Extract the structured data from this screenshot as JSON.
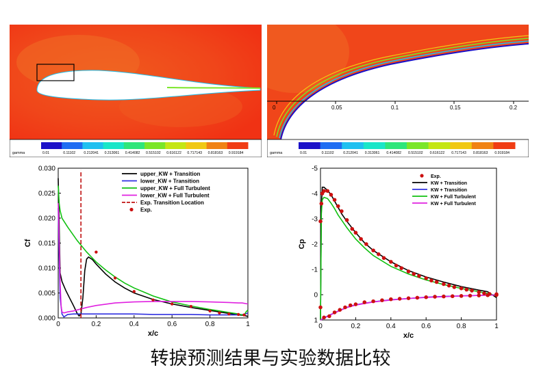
{
  "caption": "转捩预测结果与实验数据比较",
  "colormap": {
    "label": "gamma",
    "levels": [
      "0.01",
      "0.11102",
      "0.212041",
      "0.313061",
      "0.414082",
      "0.515102",
      "0.616122",
      "0.717143",
      "0.818163",
      "0.919184"
    ],
    "colors": [
      "#1a10c8",
      "#1e6cf2",
      "#1ec0f0",
      "#19e6c8",
      "#2ee67a",
      "#7ae628",
      "#c4e614",
      "#f0c814",
      "#f08214",
      "#f03c14"
    ]
  },
  "contour_zoom": {
    "ticks": [
      "0",
      "0.05",
      "0.1",
      "0.15",
      "0.2"
    ]
  },
  "chart_data": [
    {
      "type": "line",
      "xlabel": "x/c",
      "ylabel": "Cf",
      "xlim": [
        0,
        1
      ],
      "ylim": [
        0,
        0.03
      ],
      "xticks": [
        "0",
        "0.2",
        "0.4",
        "0.6",
        "0.8",
        "1"
      ],
      "yticks": [
        "0.000",
        "0.005",
        "0.010",
        "0.015",
        "0.020",
        "0.025",
        "0.030"
      ],
      "legend_position": "top-right",
      "series": [
        {
          "name": "upper_KW + Transition",
          "color": "#000000",
          "x": [
            0,
            0.01,
            0.02,
            0.04,
            0.06,
            0.08,
            0.1,
            0.11,
            0.12,
            0.13,
            0.14,
            0.15,
            0.16,
            0.18,
            0.2,
            0.25,
            0.3,
            0.35,
            0.4,
            0.5,
            0.6,
            0.7,
            0.8,
            0.9,
            0.95,
            0.98,
            1.0
          ],
          "y": [
            0.028,
            0.009,
            0.0073,
            0.0055,
            0.004,
            0.0025,
            0.0009,
            0.0004,
            0.0008,
            0.004,
            0.0095,
            0.0118,
            0.0122,
            0.0117,
            0.0108,
            0.0088,
            0.0072,
            0.006,
            0.005,
            0.0037,
            0.0028,
            0.0021,
            0.0015,
            0.0009,
            0.0006,
            0.0005,
            0.0003
          ]
        },
        {
          "name": "lower_KW + Transition",
          "color": "#3030e0",
          "x": [
            0,
            0.005,
            0.01,
            0.02,
            0.03,
            0.05,
            0.08,
            0.1,
            0.12,
            0.15,
            0.2,
            0.3,
            0.4,
            0.5,
            0.6,
            0.7,
            0.8,
            0.9,
            0.95,
            0.98,
            1.0
          ],
          "y": [
            0.022,
            0.012,
            0.004,
            0.0008,
            0.0002,
            0.0007,
            0.0008,
            0.0008,
            0.0008,
            0.0008,
            0.0008,
            0.0008,
            0.0008,
            0.0007,
            0.0007,
            0.0007,
            0.0006,
            0.0006,
            0.0006,
            0.0007,
            0.001
          ]
        },
        {
          "name": "upper_KW + Full Turbulent",
          "color": "#10c010",
          "x": [
            0,
            0.005,
            0.01,
            0.02,
            0.05,
            0.1,
            0.15,
            0.2,
            0.25,
            0.3,
            0.35,
            0.4,
            0.45,
            0.5,
            0.55,
            0.6,
            0.7,
            0.8,
            0.9,
            0.95,
            0.98,
            0.99,
            1.0
          ],
          "y": [
            0.0265,
            0.023,
            0.0215,
            0.02,
            0.0182,
            0.0155,
            0.0132,
            0.0112,
            0.0096,
            0.0082,
            0.007,
            0.006,
            0.0052,
            0.0044,
            0.0038,
            0.0032,
            0.0024,
            0.0017,
            0.0011,
            0.0008,
            0.0005,
            0.0012,
            0.0016
          ]
        },
        {
          "name": "lower_KW + Full Turbulent",
          "color": "#e020e0",
          "x": [
            0,
            0.005,
            0.01,
            0.015,
            0.02,
            0.03,
            0.05,
            0.08,
            0.1,
            0.15,
            0.2,
            0.3,
            0.4,
            0.5,
            0.6,
            0.7,
            0.8,
            0.9,
            0.95,
            0.97,
            1.0
          ],
          "y": [
            0.023,
            0.015,
            0.007,
            0.0025,
            0.0012,
            0.001,
            0.0012,
            0.0014,
            0.0016,
            0.0021,
            0.0025,
            0.003,
            0.0032,
            0.0033,
            0.0033,
            0.0033,
            0.0032,
            0.0031,
            0.003,
            0.003,
            0.0028
          ]
        },
        {
          "name": "Exp. Transition Location",
          "color": "#c01010",
          "dashed": true,
          "x": [
            0.12,
            0.12
          ],
          "y": [
            0,
            0.0296
          ]
        }
      ],
      "points": {
        "name": "Exp.",
        "color": "#cc1010",
        "x": [
          0.2,
          0.3,
          0.4,
          0.5,
          0.6,
          0.7,
          0.8,
          0.85,
          0.9,
          0.95,
          0.98
        ],
        "y": [
          0.0132,
          0.008,
          0.0053,
          0.0036,
          0.0028,
          0.0023,
          0.0014,
          0.001,
          0.0008,
          0.0007,
          0.0006
        ]
      }
    },
    {
      "type": "line",
      "xlabel": "x/c",
      "ylabel": "Cp",
      "xlim": [
        0,
        1
      ],
      "ylim": [
        1,
        -5
      ],
      "xticks": [
        "0",
        "0.2",
        "0.4",
        "0.6",
        "0.8",
        "1"
      ],
      "yticks": [
        "1",
        "0",
        "-1",
        "-2",
        "-3",
        "-4",
        "-5"
      ],
      "legend_position": "top-right",
      "series": [
        {
          "name": "KW + Transition",
          "color": "#000000",
          "x": [
            0,
            0.005,
            0.01,
            0.02,
            0.04,
            0.06,
            0.08,
            0.1,
            0.12,
            0.15,
            0.2,
            0.25,
            0.3,
            0.4,
            0.5,
            0.6,
            0.7,
            0.8,
            0.9,
            0.95,
            1.0
          ],
          "y": [
            1.0,
            -3.5,
            -4.25,
            -4.25,
            -4.12,
            -3.95,
            -3.7,
            -3.45,
            -3.2,
            -2.9,
            -2.45,
            -2.05,
            -1.75,
            -1.3,
            -0.95,
            -0.7,
            -0.5,
            -0.32,
            -0.18,
            -0.12,
            0.12
          ]
        },
        {
          "name": "KW + Transition",
          "color": "#3030e0",
          "x": [
            0,
            0.01,
            0.02,
            0.04,
            0.06,
            0.1,
            0.15,
            0.2,
            0.3,
            0.4,
            0.5,
            0.6,
            0.7,
            0.8,
            0.9,
            1.0
          ],
          "y": [
            1.0,
            0.96,
            0.92,
            0.85,
            0.78,
            0.65,
            0.5,
            0.4,
            0.28,
            0.2,
            0.15,
            0.1,
            0.07,
            0.05,
            0.03,
            0.0
          ]
        },
        {
          "name": "KW + Full Turbulent",
          "color": "#10c010",
          "x": [
            0,
            0.005,
            0.01,
            0.02,
            0.04,
            0.06,
            0.08,
            0.1,
            0.12,
            0.15,
            0.2,
            0.25,
            0.3,
            0.4,
            0.5,
            0.6,
            0.7,
            0.8,
            0.9,
            0.95,
            1.0
          ],
          "y": [
            1.0,
            -3.2,
            -3.75,
            -3.85,
            -3.8,
            -3.62,
            -3.4,
            -3.15,
            -2.95,
            -2.65,
            -2.2,
            -1.85,
            -1.55,
            -1.12,
            -0.82,
            -0.58,
            -0.4,
            -0.25,
            -0.12,
            -0.05,
            0.05
          ]
        },
        {
          "name": "KW + Full Turbulent",
          "color": "#e020e0",
          "x": [
            0,
            0.01,
            0.02,
            0.04,
            0.06,
            0.1,
            0.15,
            0.2,
            0.3,
            0.4,
            0.5,
            0.6,
            0.7,
            0.8,
            0.9,
            1.0
          ],
          "y": [
            1.0,
            0.97,
            0.93,
            0.86,
            0.79,
            0.66,
            0.51,
            0.41,
            0.29,
            0.21,
            0.15,
            0.11,
            0.08,
            0.05,
            0.03,
            0.01
          ]
        }
      ],
      "points": {
        "name": "Exp.",
        "color": "#cc1010",
        "upper_x": [
          0,
          0.0,
          0.005,
          0.01,
          0.02,
          0.04,
          0.06,
          0.08,
          0.1,
          0.12,
          0.15,
          0.18,
          0.2,
          0.23,
          0.26,
          0.3,
          0.33,
          0.36,
          0.4,
          0.43,
          0.46,
          0.5,
          0.53,
          0.56,
          0.6,
          0.63,
          0.66,
          0.7,
          0.73,
          0.76,
          0.8,
          0.83,
          0.86,
          0.9,
          0.93,
          0.96,
          1.0
        ],
        "upper_y": [
          0.5,
          -2.9,
          -3.6,
          -4.0,
          -4.1,
          -4.1,
          -3.95,
          -3.75,
          -3.5,
          -3.3,
          -2.95,
          -2.6,
          -2.45,
          -2.2,
          -2.0,
          -1.75,
          -1.6,
          -1.45,
          -1.3,
          -1.15,
          -1.05,
          -0.92,
          -0.82,
          -0.74,
          -0.65,
          -0.56,
          -0.5,
          -0.42,
          -0.36,
          -0.3,
          -0.25,
          -0.2,
          -0.16,
          -0.1,
          -0.05,
          -0.03,
          -0.02
        ],
        "lower_x": [
          0.02,
          0.05,
          0.08,
          0.11,
          0.14,
          0.17,
          0.2,
          0.25,
          0.3,
          0.35,
          0.4,
          0.45,
          0.5,
          0.55,
          0.6,
          0.65,
          0.7,
          0.75,
          0.8,
          0.85,
          0.9,
          0.95,
          1.0
        ],
        "lower_y": [
          0.9,
          0.85,
          0.7,
          0.6,
          0.5,
          0.42,
          0.38,
          0.3,
          0.26,
          0.22,
          0.18,
          0.16,
          0.14,
          0.12,
          0.1,
          0.08,
          0.07,
          0.06,
          0.05,
          0.04,
          0.03,
          0.02,
          0.01
        ]
      }
    }
  ]
}
